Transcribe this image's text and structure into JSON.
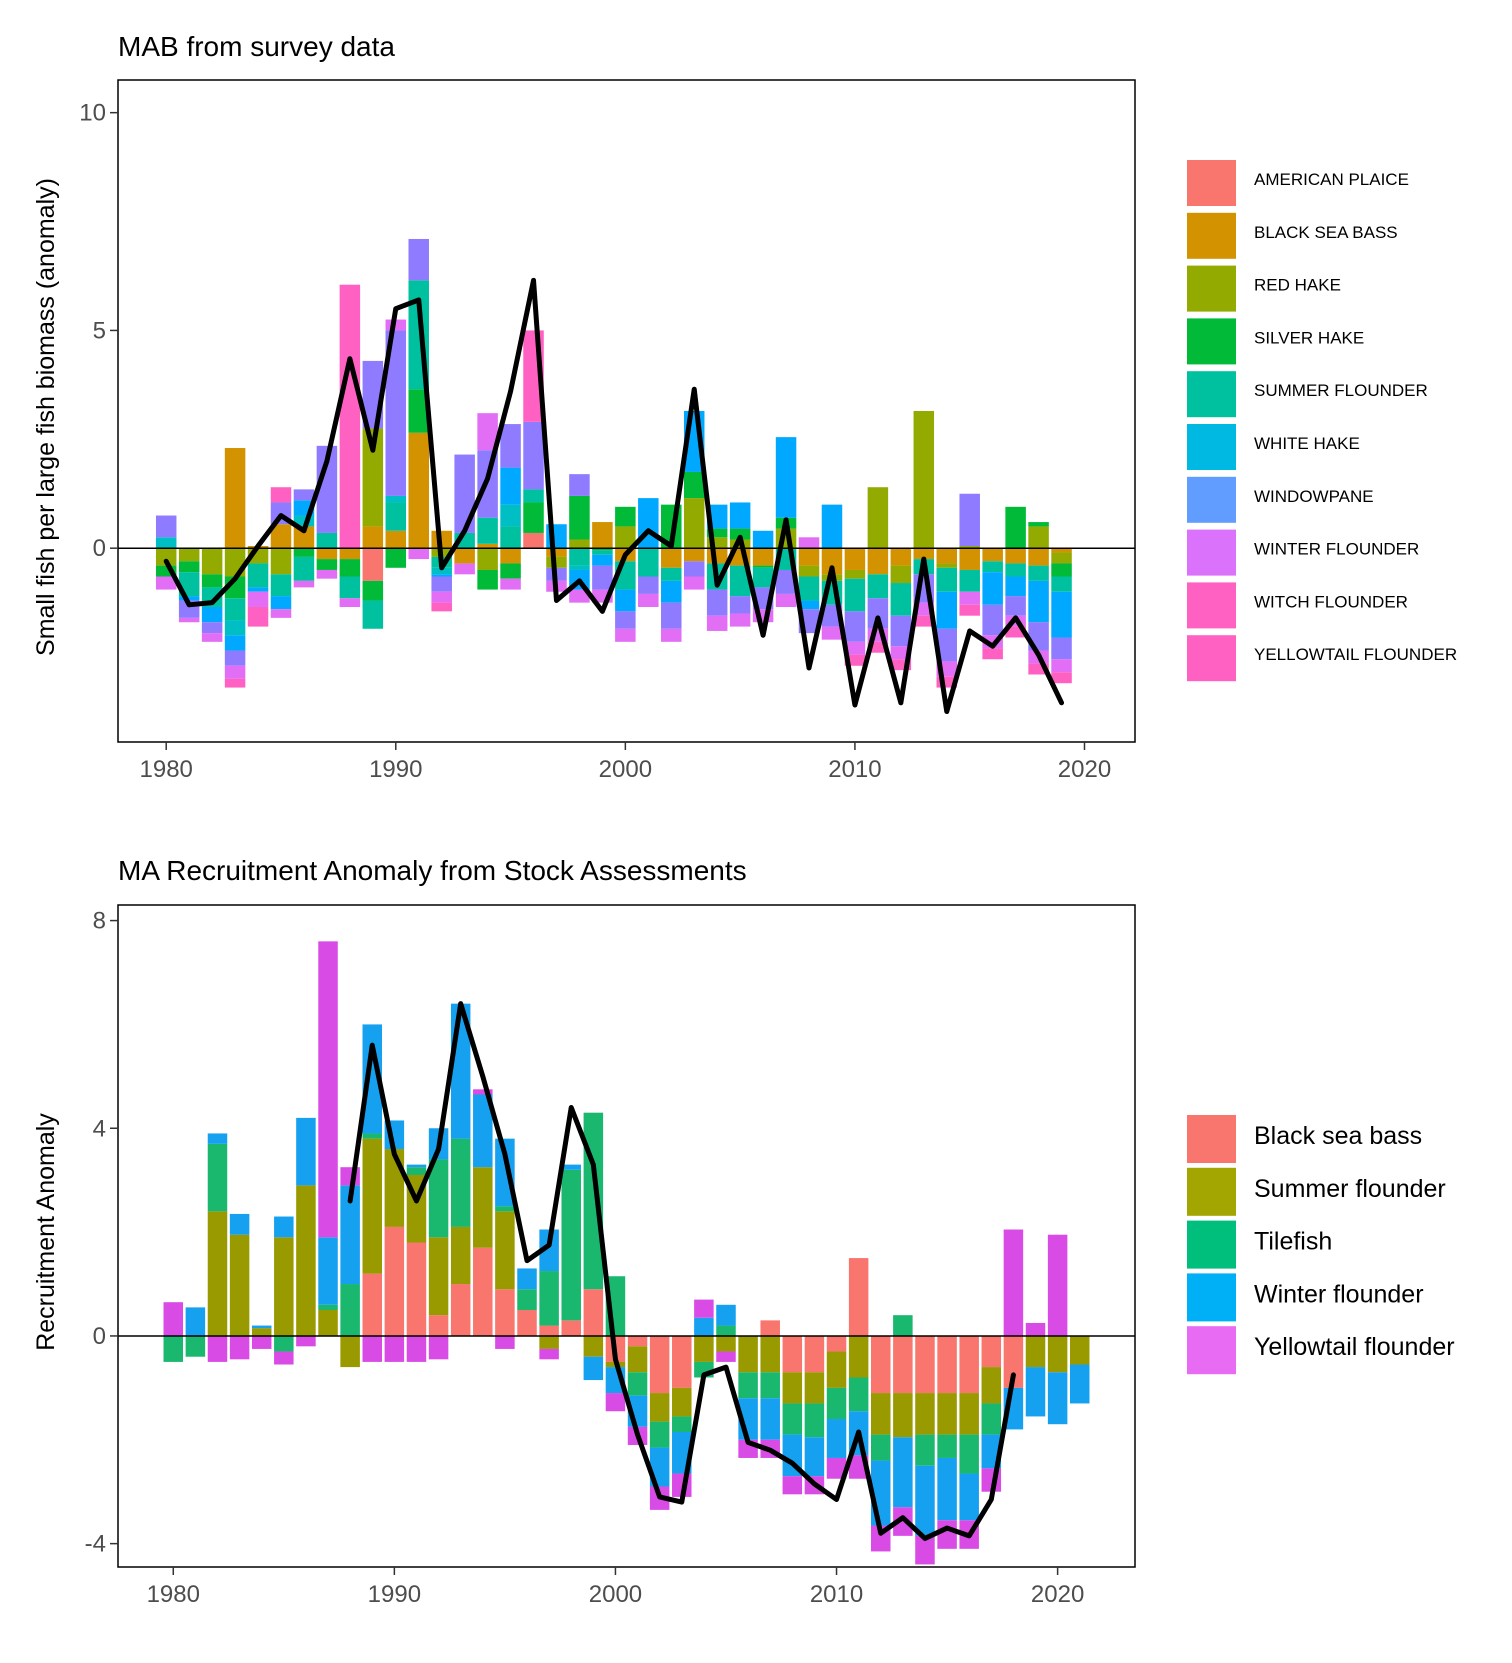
{
  "chart_data": [
    {
      "type": "bar",
      "stacked": true,
      "title": "MAB from survey data",
      "xlabel": "",
      "ylabel": "Small fish per large fish biomass (anomaly)",
      "xlim": [
        1977.9,
        2022.2
      ],
      "ylim": [
        -4.45,
        10.75
      ],
      "xticks": [
        1980,
        1990,
        2000,
        2010,
        2020
      ],
      "yticks": [
        0,
        5,
        10
      ],
      "grid": false,
      "legend_position": "right",
      "legend_labels": [
        "AMERICAN PLAICE",
        "BLACK SEA BASS",
        "RED HAKE",
        "SILVER HAKE",
        "SUMMER FLOUNDER",
        "WHITE HAKE",
        "WINDOWPANE",
        "WINTER FLOUNDER",
        "WITCH FLOUNDER",
        "YELLOWTAIL FLOUNDER"
      ],
      "colors": [
        "#F8766D",
        "#D39200",
        "#93AA00",
        "#00BA38",
        "#00C19F",
        "#00B9E3",
        "#619CFF",
        "#DB72FB",
        "#FF61C3",
        "#FF61C3"
      ],
      "series_colors": [
        "#F8766D",
        "#D39200",
        "#93AA00",
        "#00BA38",
        "#00C19F",
        "#00BFC4",
        "#00A9FF",
        "#8F7BFF",
        "#E36EF6",
        "#FF61C3"
      ],
      "x": [
        1980,
        1981,
        1982,
        1983,
        1984,
        1985,
        1986,
        1987,
        1988,
        1989,
        1990,
        1991,
        1992,
        1993,
        1994,
        1995,
        1996,
        1997,
        1998,
        1999,
        2000,
        2001,
        2002,
        2003,
        2004,
        2005,
        2006,
        2007,
        2008,
        2009,
        2010,
        2011,
        2012,
        2013,
        2014,
        2015,
        2016,
        2017,
        2018,
        2019
      ],
      "series": [
        {
          "name": "AMERICAN PLAICE",
          "values": [
            0,
            0,
            0,
            0,
            0,
            0,
            0,
            0,
            0,
            -0.75,
            0,
            0,
            0,
            0,
            0,
            0,
            0.35,
            0,
            0,
            0,
            0,
            0,
            0,
            0,
            0,
            0,
            0,
            0,
            0,
            0,
            0,
            0,
            0,
            0,
            0,
            0,
            0,
            0,
            0,
            0
          ]
        },
        {
          "name": "BLACK SEA BASS",
          "values": [
            0,
            0,
            0,
            2.3,
            0.05,
            0.55,
            0.5,
            -0.25,
            -0.25,
            0.5,
            0.4,
            2.65,
            0.4,
            -0.35,
            0.1,
            -0.35,
            0,
            -0.2,
            0,
            0.6,
            -0.3,
            0,
            -0.45,
            -0.3,
            -0.35,
            -0.4,
            -0.4,
            0,
            -0.4,
            -0.6,
            -0.5,
            -0.6,
            -0.4,
            -0.25,
            -0.35,
            -0.5,
            -0.3,
            -0.35,
            -0.4,
            -0.1
          ]
        },
        {
          "name": "RED HAKE",
          "values": [
            -0.4,
            -0.3,
            -0.6,
            -0.65,
            -0.35,
            -0.6,
            0,
            0,
            0,
            2.25,
            0,
            0,
            -0.2,
            0,
            -0.5,
            0,
            0,
            -0.25,
            0.2,
            0,
            0.5,
            0,
            0,
            1.15,
            0.25,
            0.2,
            0,
            0.45,
            -0.25,
            -0.15,
            -0.2,
            1.4,
            -0.4,
            3.15,
            -0.1,
            0.05,
            0,
            0,
            0.5,
            -0.25
          ]
        },
        {
          "name": "SILVER HAKE",
          "values": [
            -0.25,
            -0.25,
            -0.3,
            -0.5,
            0,
            0,
            -0.2,
            -0.25,
            -0.4,
            -0.45,
            -0.45,
            1.0,
            0,
            0,
            -0.45,
            -0.35,
            0.7,
            0,
            1.0,
            -0.05,
            0.45,
            0,
            1.0,
            0.6,
            0.2,
            0.25,
            -0.05,
            0.25,
            0,
            0,
            0,
            0,
            0,
            0,
            0,
            0,
            0,
            0.95,
            0.1,
            -0.3
          ]
        },
        {
          "name": "SUMMER FLOUNDER",
          "values": [
            0,
            -0.55,
            -0.45,
            -0.5,
            -0.55,
            -0.5,
            -0.55,
            0.35,
            -0.5,
            -0.65,
            0.65,
            2.5,
            -0.25,
            0.35,
            0.6,
            0.5,
            0.3,
            0,
            -0.4,
            -0.1,
            -0.65,
            -0.65,
            -0.3,
            0,
            -0.6,
            -0.7,
            -0.45,
            -0.5,
            -0.55,
            -0.55,
            -0.75,
            -0.55,
            -0.75,
            -0.35,
            -0.55,
            -0.5,
            -0.25,
            -0.3,
            -0.35,
            -0.35
          ]
        },
        {
          "name": "WHITE HAKE",
          "values": [
            0.25,
            0,
            0,
            -0.35,
            0,
            0,
            0.25,
            0,
            0,
            0,
            0.15,
            0,
            -0.15,
            0,
            0,
            0.5,
            0,
            0,
            -0.1,
            0,
            0,
            0,
            0,
            0,
            0,
            0,
            0,
            0,
            0,
            0,
            0,
            0,
            0,
            0,
            0,
            0,
            0,
            0,
            0,
            0
          ]
        },
        {
          "name": "WINDOWPANE",
          "values": [
            0,
            -0.1,
            -0.35,
            -0.35,
            -0.1,
            -0.3,
            0.35,
            0,
            0,
            0,
            0,
            0,
            -0.05,
            0,
            0,
            0.85,
            0,
            0.55,
            -0.45,
            -0.25,
            -0.5,
            1.15,
            -0.5,
            1.4,
            0.55,
            0.6,
            0.4,
            1.85,
            -0.2,
            1.0,
            0,
            0,
            0,
            0,
            -0.85,
            0,
            -0.75,
            -0.45,
            -0.95,
            -1.05
          ]
        },
        {
          "name": "WINTER FLOUNDER",
          "values": [
            0.5,
            -0.4,
            -0.25,
            -0.35,
            0,
            0.5,
            0.25,
            2.0,
            0,
            1.55,
            3.8,
            0.95,
            -0.35,
            1.8,
            1.55,
            1.0,
            1.55,
            -0.3,
            0.5,
            -0.55,
            -0.4,
            -0.4,
            -0.6,
            -0.35,
            -0.6,
            -0.4,
            -0.5,
            -0.55,
            -0.55,
            -0.5,
            -0.7,
            -0.7,
            -0.7,
            -0.65,
            -0.75,
            1.2,
            -0.7,
            -0.45,
            -0.65,
            -0.5
          ]
        },
        {
          "name": "WITCH FLOUNDER",
          "values": [
            -0.3,
            -0.1,
            -0.2,
            -0.3,
            -0.35,
            -0.2,
            -0.15,
            -0.2,
            -0.2,
            0,
            0.25,
            -0.25,
            -0.25,
            -0.25,
            0.85,
            -0.25,
            0,
            -0.25,
            -0.3,
            -0.3,
            -0.3,
            -0.3,
            -0.3,
            -0.3,
            -0.35,
            -0.3,
            -0.3,
            -0.3,
            0.25,
            -0.3,
            -0.3,
            -0.3,
            -0.3,
            -0.3,
            -0.35,
            -0.3,
            -0.3,
            -0.25,
            -0.3,
            -0.3
          ]
        },
        {
          "name": "YELLOWTAIL FLOUNDER",
          "values": [
            0,
            0,
            0,
            -0.2,
            -0.45,
            0.35,
            0,
            0,
            6.05,
            0,
            0,
            0,
            -0.2,
            0,
            0,
            0,
            2.1,
            0,
            0,
            0,
            0,
            0,
            0,
            0,
            0,
            0,
            0,
            0,
            0,
            0,
            -0.25,
            -0.25,
            -0.25,
            -0.25,
            -0.25,
            -0.25,
            -0.25,
            -0.25,
            -0.25,
            -0.25
          ]
        }
      ],
      "line": {
        "name": "total",
        "x": [
          1980,
          1981,
          1982,
          1983,
          1984,
          1985,
          1986,
          1987,
          1988,
          1989,
          1990,
          1991,
          1992,
          1993,
          1994,
          1995,
          1996,
          1997,
          1998,
          1999,
          2000,
          2001,
          2002,
          2003,
          2004,
          2005,
          2006,
          2007,
          2008,
          2009,
          2010,
          2011,
          2012,
          2013,
          2014,
          2015,
          2016,
          2017,
          2018,
          2019
        ],
        "values": [
          -0.3,
          -1.3,
          -1.25,
          -0.7,
          0.05,
          0.75,
          0.4,
          2.0,
          4.35,
          2.25,
          5.5,
          5.7,
          -0.45,
          0.4,
          1.6,
          3.6,
          6.15,
          -1.2,
          -0.75,
          -1.45,
          -0.15,
          0.4,
          0.05,
          3.65,
          -0.85,
          0.25,
          -2.0,
          0.65,
          -2.75,
          -0.45,
          -3.6,
          -1.6,
          -3.55,
          -0.25,
          -3.75,
          -1.9,
          -2.25,
          -1.6,
          -2.45,
          -3.55
        ]
      }
    },
    {
      "type": "bar",
      "stacked": true,
      "title": "MA Recruitment Anomaly from Stock Assessments",
      "xlabel": "",
      "ylabel": "Recruitment Anomaly",
      "xlim": [
        1977.5,
        2023.5
      ],
      "ylim": [
        -4.45,
        8.3
      ],
      "xticks": [
        1980,
        1990,
        2000,
        2010,
        2020
      ],
      "yticks": [
        -4,
        0,
        4,
        8
      ],
      "grid": false,
      "legend_position": "right",
      "legend_labels": [
        "Black sea bass",
        "Summer flounder",
        "Tilefish",
        "Winter flounder",
        "Yellowtail flounder"
      ],
      "colors": [
        "#F8766D",
        "#A3A500",
        "#00BF7D",
        "#00B0F6",
        "#E76BF3"
      ],
      "series_colors": [
        "#F8766D",
        "#999900",
        "#1AB76F",
        "#16A0F0",
        "#D94BE5"
      ],
      "x": [
        1980,
        1981,
        1982,
        1983,
        1984,
        1985,
        1986,
        1987,
        1988,
        1989,
        1990,
        1991,
        1992,
        1993,
        1994,
        1995,
        1996,
        1997,
        1998,
        1999,
        2000,
        2001,
        2002,
        2003,
        2004,
        2005,
        2006,
        2007,
        2008,
        2009,
        2010,
        2011,
        2012,
        2013,
        2014,
        2015,
        2016,
        2017,
        2018,
        2019,
        2020,
        2021
      ],
      "series": [
        {
          "name": "Black sea bass",
          "values": [
            0,
            0,
            0,
            0,
            0,
            0,
            0,
            0,
            0,
            1.2,
            2.1,
            1.8,
            0.4,
            1.0,
            1.7,
            0.9,
            0.5,
            0.2,
            0.3,
            0.9,
            -0.5,
            -0.2,
            -1.1,
            -1.0,
            0,
            0,
            0,
            0.3,
            -0.7,
            -0.7,
            -0.3,
            1.5,
            -1.1,
            -1.1,
            -1.1,
            -1.1,
            -1.1,
            -0.6,
            -1.0,
            0,
            0,
            0
          ]
        },
        {
          "name": "Summer flounder",
          "values": [
            0,
            0,
            2.4,
            1.95,
            0.15,
            1.9,
            2.9,
            0.5,
            -0.6,
            2.6,
            1.5,
            1.3,
            1.5,
            1.1,
            1.55,
            1.5,
            0,
            -0.25,
            0,
            -0.4,
            -0.1,
            -0.5,
            -0.55,
            -0.55,
            -0.5,
            -0.3,
            -0.7,
            -0.7,
            -0.6,
            -0.6,
            -0.7,
            -0.8,
            -0.8,
            -0.85,
            -0.8,
            -0.8,
            -0.8,
            -0.7,
            0,
            -0.6,
            -0.7,
            -0.55
          ]
        },
        {
          "name": "Tilefish",
          "values": [
            -0.5,
            -0.4,
            1.3,
            0,
            0,
            -0.3,
            0,
            0.1,
            1.0,
            0.1,
            0,
            0.15,
            1.5,
            1.7,
            0,
            0.1,
            0.4,
            1.05,
            2.9,
            3.4,
            1.15,
            -0.45,
            -0.5,
            -0.3,
            -0.3,
            0.2,
            -0.5,
            -0.5,
            -0.6,
            -0.65,
            -0.6,
            -0.65,
            -0.5,
            0.4,
            -0.6,
            -0.45,
            -0.75,
            -0.6,
            0,
            0,
            0,
            0
          ]
        },
        {
          "name": "Winter flounder",
          "values": [
            0,
            0.55,
            0.2,
            0.4,
            0.05,
            0.4,
            1.3,
            1.3,
            1.9,
            2.1,
            0.55,
            0.05,
            0.6,
            2.6,
            1.4,
            1.3,
            0.4,
            0.8,
            0.1,
            -0.45,
            -0.5,
            -0.6,
            -0.75,
            -0.8,
            0.35,
            0.4,
            -0.8,
            -0.8,
            -0.8,
            -0.75,
            -0.75,
            -0.85,
            -1.25,
            -1.35,
            -1.35,
            -1.2,
            -0.9,
            -0.65,
            -0.8,
            -0.95,
            -1.0,
            -0.75
          ]
        },
        {
          "name": "Yellowtail flounder",
          "values": [
            0.65,
            0,
            -0.5,
            -0.45,
            -0.25,
            -0.25,
            -0.2,
            5.7,
            0.35,
            -0.5,
            -0.5,
            -0.5,
            -0.45,
            0,
            0.1,
            -0.25,
            0,
            -0.2,
            0,
            0,
            -0.35,
            -0.35,
            -0.45,
            -0.45,
            0.35,
            -0.2,
            -0.35,
            -0.35,
            -0.35,
            -0.35,
            -0.4,
            -0.45,
            -0.5,
            -0.55,
            -0.55,
            -0.55,
            -0.55,
            -0.45,
            2.05,
            0.25,
            1.95,
            0
          ]
        }
      ],
      "line": {
        "name": "total",
        "x": [
          1988,
          1989,
          1990,
          1991,
          1992,
          1993,
          1994,
          1995,
          1996,
          1997,
          1998,
          1999,
          2000,
          2001,
          2002,
          2003,
          2004,
          2005,
          2006,
          2007,
          2008,
          2009,
          2010,
          2011,
          2012,
          2013,
          2014,
          2015,
          2016,
          2017,
          2018
        ],
        "values": [
          2.6,
          5.6,
          3.5,
          2.6,
          3.6,
          6.4,
          5.0,
          3.5,
          1.45,
          1.75,
          4.4,
          3.3,
          -0.45,
          -1.9,
          -3.1,
          -3.2,
          -0.75,
          -0.6,
          -2.05,
          -2.2,
          -2.45,
          -2.85,
          -3.15,
          -1.85,
          -3.8,
          -3.5,
          -3.9,
          -3.7,
          -3.85,
          -3.15,
          -0.75
        ]
      }
    }
  ]
}
